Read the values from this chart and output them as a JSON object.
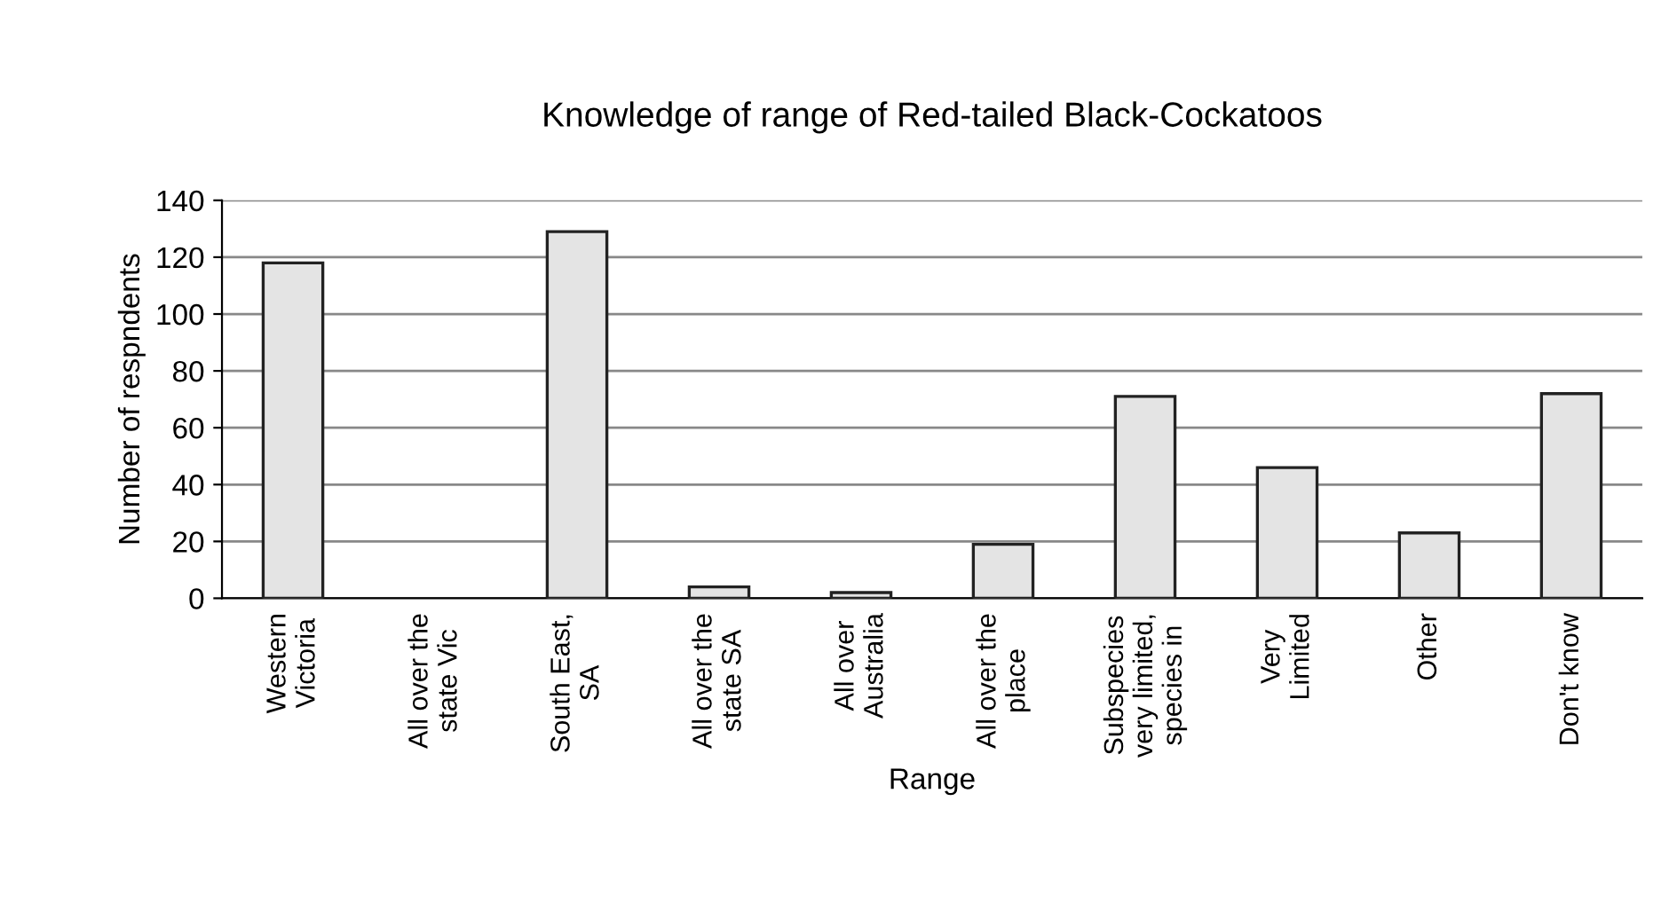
{
  "chart_data": {
    "type": "bar",
    "title": "Knowledge of range of Red-tailed Black-Cockatoos",
    "xlabel": "Range",
    "ylabel": "Number of respndents",
    "categories": [
      "Western\nVictoria",
      "All over the\nstate Vic",
      "South East,\nSA",
      "All over the\nstate SA",
      "All over\nAustralia",
      "All over the\nplace",
      "Subspecies\nvery limited,\nspecies in",
      "Very\nLimited",
      "Other",
      "Don't know"
    ],
    "values": [
      118,
      0,
      129,
      4,
      2,
      19,
      71,
      46,
      23,
      72
    ],
    "color": "#e4e4e4",
    "ylim": [
      0,
      140
    ],
    "yticks": [
      0,
      20,
      40,
      60,
      80,
      100,
      120,
      140
    ],
    "grid": "y"
  }
}
